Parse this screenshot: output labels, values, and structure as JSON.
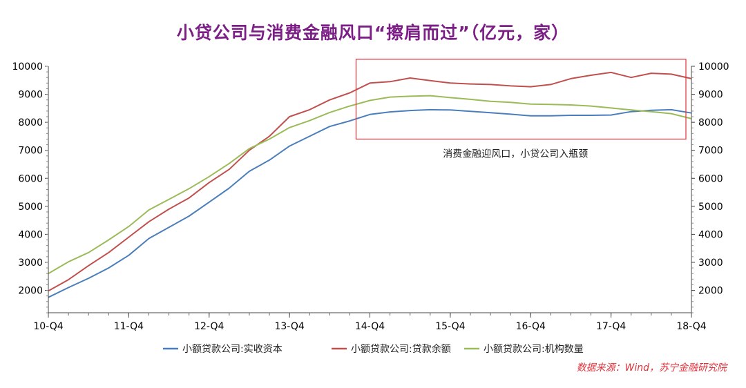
{
  "title": "小贷公司与消费金融风口“擦肩而过”（亿元，家）",
  "source": "数据来源：Wind，苏宁金融研究院",
  "chart_data": {
    "type": "line",
    "x": [
      "10-Q4",
      "11-Q1",
      "11-Q2",
      "11-Q3",
      "11-Q4",
      "12-Q1",
      "12-Q2",
      "12-Q3",
      "12-Q4",
      "13-Q1",
      "13-Q2",
      "13-Q3",
      "13-Q4",
      "14-Q1",
      "14-Q2",
      "14-Q3",
      "14-Q4",
      "15-Q1",
      "15-Q2",
      "15-Q3",
      "15-Q4",
      "16-Q1",
      "16-Q2",
      "16-Q3",
      "16-Q4",
      "17-Q1",
      "17-Q2",
      "17-Q3",
      "17-Q4",
      "18-Q1",
      "18-Q2",
      "18-Q3",
      "18-Q4"
    ],
    "xticks": [
      "10-Q4",
      "11-Q4",
      "12-Q4",
      "13-Q4",
      "14-Q4",
      "15-Q4",
      "16-Q4",
      "17-Q4",
      "18-Q4"
    ],
    "ylim": [
      1200,
      10000
    ],
    "y_ticks": [
      2000,
      3000,
      4000,
      5000,
      6000,
      7000,
      8000,
      9000,
      10000
    ],
    "y2lim": [
      1200,
      10000
    ],
    "y2_ticks": [
      2000,
      3000,
      4000,
      5000,
      6000,
      7000,
      8000,
      9000,
      10000
    ],
    "series": [
      {
        "name": "小额贷款公司:实收资本",
        "color": "#4a7ebb",
        "axis": "left",
        "values": [
          1750,
          2100,
          2430,
          2800,
          3250,
          3850,
          4250,
          4650,
          5150,
          5650,
          6250,
          6650,
          7150,
          7500,
          7850,
          8050,
          8280,
          8370,
          8420,
          8450,
          8440,
          8390,
          8340,
          8290,
          8230,
          8230,
          8250,
          8250,
          8260,
          8380,
          8430,
          8450,
          8330
        ]
      },
      {
        "name": "小额贷款公司:贷款余额",
        "color": "#c0504d",
        "axis": "left",
        "values": [
          1980,
          2380,
          2880,
          3350,
          3900,
          4450,
          4900,
          5300,
          5850,
          6320,
          7000,
          7500,
          8200,
          8450,
          8800,
          9050,
          9400,
          9450,
          9580,
          9490,
          9400,
          9370,
          9350,
          9300,
          9270,
          9350,
          9560,
          9680,
          9780,
          9600,
          9750,
          9720,
          9560
        ]
      },
      {
        "name": "小额贷款公司:机构数量",
        "color": "#9bbb59",
        "axis": "right",
        "values": [
          2600,
          3020,
          3350,
          3800,
          4280,
          4870,
          5250,
          5630,
          6060,
          6530,
          7060,
          7400,
          7810,
          8060,
          8350,
          8580,
          8780,
          8900,
          8930,
          8950,
          8880,
          8820,
          8750,
          8710,
          8650,
          8640,
          8620,
          8580,
          8510,
          8440,
          8380,
          8310,
          8130
        ]
      }
    ],
    "annotation": {
      "text": "消费金融迎风口，小贷公司入瓶颈",
      "box_x_start": "14-Q4",
      "box_x_end": "18-Q4",
      "box_y_low": 7400,
      "box_y_high": 10250
    },
    "legend_position": "bottom"
  }
}
